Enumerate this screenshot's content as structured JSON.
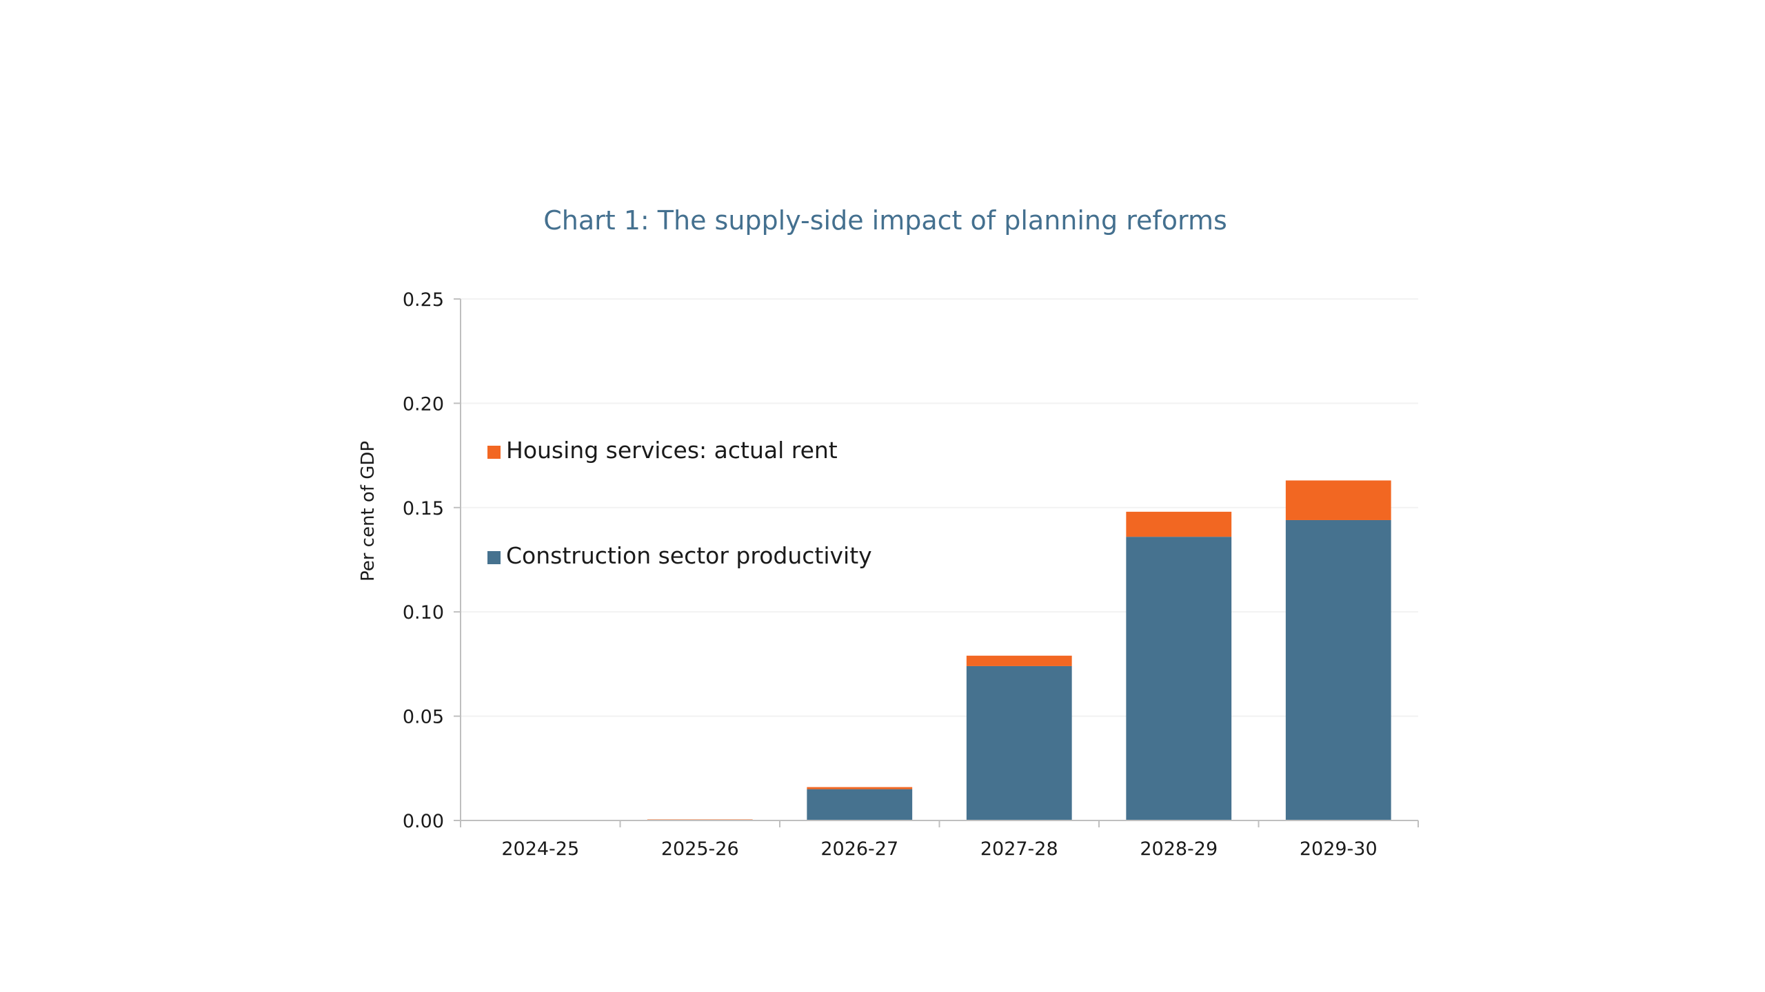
{
  "colors": {
    "construction": "#46728f",
    "housing": "#f26722",
    "title": "#44708f",
    "axis": "#bfbfbf",
    "grid": "#f2f2f2",
    "text": "#1a1a1a"
  },
  "chart_data": {
    "type": "bar",
    "stacked": true,
    "title": "Chart 1: The supply-side impact of planning reforms",
    "xlabel": "",
    "ylabel": "Per cent of GDP",
    "categories": [
      "2024-25",
      "2025-26",
      "2026-27",
      "2027-28",
      "2028-29",
      "2029-30"
    ],
    "series": [
      {
        "name": "Construction sector productivity",
        "color": "#46728f",
        "values": [
          0.0,
          0.0,
          0.015,
          0.074,
          0.136,
          0.144
        ]
      },
      {
        "name": "Housing services: actual rent",
        "color": "#f26722",
        "values": [
          0.0,
          0.0005,
          0.001,
          0.005,
          0.012,
          0.019
        ]
      }
    ],
    "ylim": [
      0,
      0.25
    ],
    "yticks": [
      "0.00",
      "0.05",
      "0.10",
      "0.15",
      "0.20",
      "0.25"
    ],
    "grid": true,
    "legend_position": "left, inside plot area",
    "legend_order": [
      "Housing services: actual rent",
      "Construction sector productivity"
    ]
  }
}
